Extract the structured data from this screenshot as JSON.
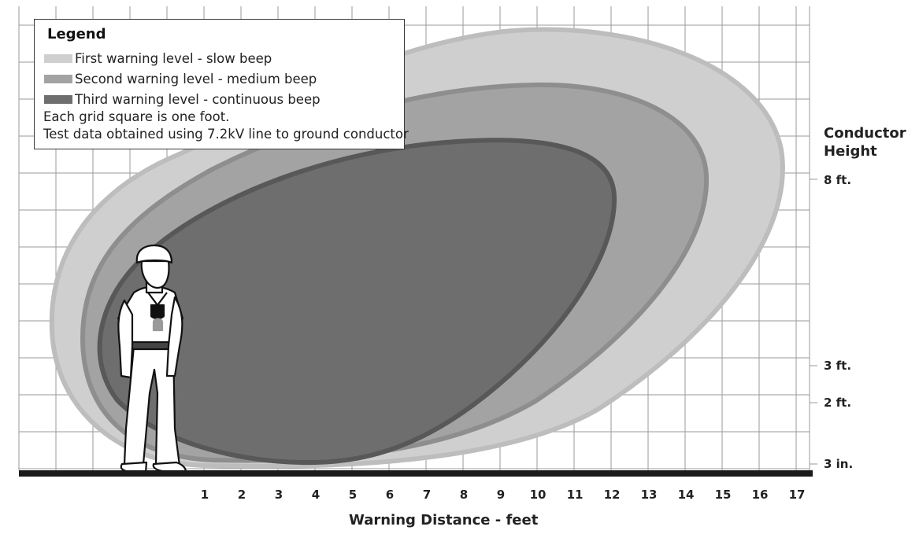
{
  "legend": {
    "title": "Legend",
    "levels": [
      {
        "label": "First warning level - slow beep",
        "color": "#cfcfcf"
      },
      {
        "label": "Second warning level - medium beep",
        "color": "#a3a3a3"
      },
      {
        "label": "Third warning level - continuous beep",
        "color": "#6e6e6e"
      }
    ],
    "notes": [
      "Each grid square is one foot.",
      "Test data obtained using 7.2kV line to ground conductor"
    ]
  },
  "y_axis": {
    "title_line1": "Conductor",
    "title_line2": "Height",
    "labels": [
      "8 ft.",
      "3 ft.",
      "2 ft.",
      "3 in."
    ]
  },
  "x_axis": {
    "title": "Warning Distance - feet",
    "ticks": [
      "1",
      "2",
      "3",
      "4",
      "5",
      "6",
      "7",
      "8",
      "9",
      "10",
      "11",
      "12",
      "13",
      "14",
      "15",
      "16",
      "17"
    ]
  },
  "colors": {
    "grid": "#9a9a9a",
    "ground": "#1a1a1a",
    "zone1": "#cfcfcf",
    "zone1_edge": "#bdbdbd",
    "zone2": "#a3a3a3",
    "zone2_edge": "#8e8e8e",
    "zone3": "#6e6e6e",
    "zone3_edge": "#585858"
  }
}
